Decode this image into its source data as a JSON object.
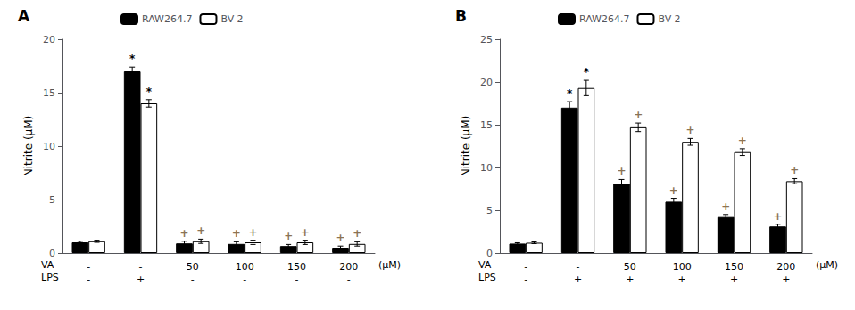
{
  "chart_data": [
    {
      "type": "bar",
      "title": "A",
      "y_label": "Nitrite (μM)",
      "categories": [
        "-",
        "-",
        "50",
        "100",
        "150",
        "200"
      ],
      "category_title": "VA",
      "category_unit": "(μM)",
      "annotations": [
        {
          "title": "LPS",
          "labels": [
            "-",
            "+",
            "-",
            "-",
            "-",
            "-"
          ]
        }
      ],
      "ylim": [
        0,
        20
      ],
      "yticks": [
        0,
        5,
        10,
        15,
        20
      ],
      "grid": false,
      "legend": "top",
      "significance_colors": {
        "*": "#000000",
        "+": "#8b7355"
      },
      "series": [
        {
          "name": "RAW264.7",
          "color": "#000000",
          "edge_color": "#000000",
          "values": [
            1.0,
            17.0,
            0.9,
            0.85,
            0.65,
            0.5
          ],
          "errors": [
            0.1,
            0.4,
            0.2,
            0.2,
            0.15,
            0.15
          ],
          "significance": [
            null,
            "*",
            "+",
            "+",
            "+",
            "+"
          ]
        },
        {
          "name": "BV-2",
          "color": "#ffffff",
          "edge_color": "#000000",
          "values": [
            1.1,
            14.0,
            1.1,
            1.0,
            1.0,
            0.85
          ],
          "errors": [
            0.1,
            0.35,
            0.2,
            0.2,
            0.2,
            0.2
          ],
          "significance": [
            null,
            "*",
            "+",
            "+",
            "+",
            "+"
          ]
        }
      ]
    },
    {
      "type": "bar",
      "title": "B",
      "y_label": "Nitrite (μM)",
      "categories": [
        "-",
        "-",
        "50",
        "100",
        "150",
        "200"
      ],
      "category_title": "VA",
      "category_unit": "(μM)",
      "annotations": [
        {
          "title": "LPS",
          "labels": [
            "-",
            "+",
            "+",
            "+",
            "+",
            "+"
          ]
        }
      ],
      "ylim": [
        0,
        25
      ],
      "yticks": [
        0,
        5,
        10,
        15,
        20,
        25
      ],
      "grid": false,
      "legend": "top",
      "significance_colors": {
        "*": "#000000",
        "+": "#8b7355"
      },
      "series": [
        {
          "name": "RAW264.7",
          "color": "#000000",
          "edge_color": "#000000",
          "values": [
            1.1,
            17.0,
            8.1,
            6.0,
            4.2,
            3.1
          ],
          "errors": [
            0.1,
            0.7,
            0.5,
            0.4,
            0.3,
            0.25
          ],
          "significance": [
            null,
            "*",
            "+",
            "+",
            "+",
            "+"
          ]
        },
        {
          "name": "BV-2",
          "color": "#ffffff",
          "edge_color": "#000000",
          "values": [
            1.2,
            19.3,
            14.7,
            13.0,
            11.8,
            8.4
          ],
          "errors": [
            0.1,
            0.9,
            0.5,
            0.4,
            0.4,
            0.3
          ],
          "significance": [
            null,
            "*",
            "+",
            "+",
            "+",
            "+"
          ]
        }
      ]
    }
  ]
}
